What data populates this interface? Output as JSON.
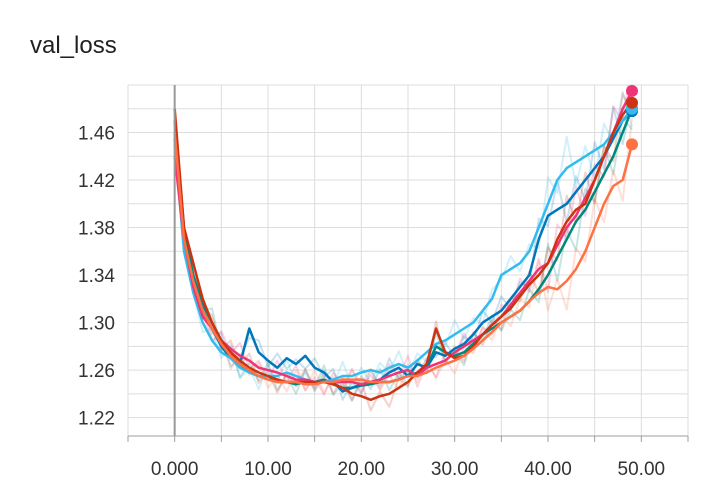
{
  "chart_data": {
    "type": "line",
    "title": "val_loss",
    "xlabel": "",
    "ylabel": "",
    "xlim": [
      -5,
      55
    ],
    "ylim": [
      1.2045,
      1.5
    ],
    "grid": true,
    "legend": "none",
    "x_ticks": [
      {
        "value": 0,
        "label": "0.000"
      },
      {
        "value": 10,
        "label": "10.00"
      },
      {
        "value": 20,
        "label": "20.00"
      },
      {
        "value": 30,
        "label": "30.00"
      },
      {
        "value": 40,
        "label": "40.00"
      },
      {
        "value": 50,
        "label": "50.00"
      }
    ],
    "y_ticks": [
      {
        "value": 1.22,
        "label": "1.22"
      },
      {
        "value": 1.26,
        "label": "1.26"
      },
      {
        "value": 1.3,
        "label": "1.30"
      },
      {
        "value": 1.34,
        "label": "1.34"
      },
      {
        "value": 1.38,
        "label": "1.38"
      },
      {
        "value": 1.42,
        "label": "1.42"
      },
      {
        "value": 1.46,
        "label": "1.46"
      }
    ],
    "x": [
      0,
      1,
      2,
      3,
      4,
      5,
      6,
      7,
      8,
      9,
      10,
      11,
      12,
      13,
      14,
      15,
      16,
      17,
      18,
      19,
      20,
      21,
      22,
      23,
      24,
      25,
      26,
      27,
      28,
      29,
      30,
      31,
      32,
      33,
      34,
      35,
      36,
      37,
      38,
      39,
      40,
      41,
      42,
      43,
      44,
      45,
      46,
      47,
      48,
      49
    ],
    "series": [
      {
        "color": "#00897b",
        "values": [
          1.47,
          1.38,
          1.34,
          1.315,
          1.3,
          1.285,
          1.275,
          1.265,
          1.258,
          1.255,
          1.255,
          1.25,
          1.25,
          1.248,
          1.25,
          1.25,
          1.252,
          1.248,
          1.245,
          1.245,
          1.247,
          1.248,
          1.25,
          1.25,
          1.252,
          1.255,
          1.258,
          1.262,
          1.28,
          1.275,
          1.272,
          1.275,
          1.282,
          1.29,
          1.295,
          1.3,
          1.305,
          1.31,
          1.318,
          1.328,
          1.34,
          1.355,
          1.37,
          1.385,
          1.395,
          1.41,
          1.425,
          1.44,
          1.46,
          1.48
        ]
      },
      {
        "color": "#0077bb",
        "values": [
          1.455,
          1.37,
          1.335,
          1.31,
          1.295,
          1.28,
          1.27,
          1.265,
          1.295,
          1.275,
          1.268,
          1.262,
          1.27,
          1.265,
          1.272,
          1.262,
          1.258,
          1.25,
          1.242,
          1.245,
          1.248,
          1.25,
          1.252,
          1.258,
          1.262,
          1.255,
          1.265,
          1.262,
          1.275,
          1.272,
          1.278,
          1.282,
          1.29,
          1.3,
          1.305,
          1.31,
          1.32,
          1.33,
          1.34,
          1.37,
          1.39,
          1.395,
          1.4,
          1.41,
          1.42,
          1.43,
          1.44,
          1.455,
          1.47,
          1.478
        ]
      },
      {
        "color": "#33bbee",
        "values": [
          1.45,
          1.36,
          1.325,
          1.3,
          1.285,
          1.275,
          1.27,
          1.262,
          1.258,
          1.255,
          1.255,
          1.255,
          1.258,
          1.255,
          1.252,
          1.25,
          1.25,
          1.252,
          1.255,
          1.255,
          1.258,
          1.26,
          1.258,
          1.262,
          1.265,
          1.262,
          1.268,
          1.275,
          1.282,
          1.285,
          1.29,
          1.295,
          1.3,
          1.31,
          1.32,
          1.34,
          1.345,
          1.35,
          1.36,
          1.38,
          1.4,
          1.42,
          1.43,
          1.435,
          1.44,
          1.445,
          1.45,
          1.46,
          1.47,
          1.48
        ]
      },
      {
        "color": "#ee3377",
        "values": [
          1.44,
          1.37,
          1.33,
          1.305,
          1.295,
          1.285,
          1.278,
          1.272,
          1.268,
          1.262,
          1.26,
          1.258,
          1.255,
          1.252,
          1.252,
          1.25,
          1.25,
          1.25,
          1.25,
          1.25,
          1.248,
          1.25,
          1.252,
          1.255,
          1.258,
          1.26,
          1.255,
          1.262,
          1.265,
          1.268,
          1.275,
          1.28,
          1.285,
          1.29,
          1.298,
          1.305,
          1.315,
          1.325,
          1.335,
          1.345,
          1.35,
          1.365,
          1.38,
          1.39,
          1.405,
          1.42,
          1.44,
          1.46,
          1.48,
          1.495
        ]
      },
      {
        "color": "#cc3311",
        "values": [
          1.48,
          1.38,
          1.35,
          1.32,
          1.3,
          1.285,
          1.275,
          1.268,
          1.262,
          1.258,
          1.255,
          1.252,
          1.25,
          1.25,
          1.25,
          1.25,
          1.25,
          1.248,
          1.245,
          1.24,
          1.238,
          1.235,
          1.238,
          1.24,
          1.245,
          1.25,
          1.258,
          1.265,
          1.295,
          1.275,
          1.27,
          1.272,
          1.28,
          1.29,
          1.298,
          1.305,
          1.312,
          1.322,
          1.332,
          1.34,
          1.35,
          1.37,
          1.385,
          1.395,
          1.4,
          1.42,
          1.44,
          1.46,
          1.475,
          1.485
        ]
      },
      {
        "color": "#ff7043",
        "values": [
          1.46,
          1.37,
          1.335,
          1.31,
          1.295,
          1.282,
          1.272,
          1.265,
          1.26,
          1.255,
          1.252,
          1.25,
          1.25,
          1.25,
          1.248,
          1.248,
          1.25,
          1.25,
          1.252,
          1.252,
          1.252,
          1.25,
          1.25,
          1.25,
          1.252,
          1.255,
          1.255,
          1.258,
          1.262,
          1.265,
          1.268,
          1.272,
          1.278,
          1.285,
          1.292,
          1.3,
          1.305,
          1.31,
          1.318,
          1.325,
          1.33,
          1.328,
          1.335,
          1.345,
          1.36,
          1.38,
          1.4,
          1.415,
          1.42,
          1.45
        ]
      }
    ]
  }
}
